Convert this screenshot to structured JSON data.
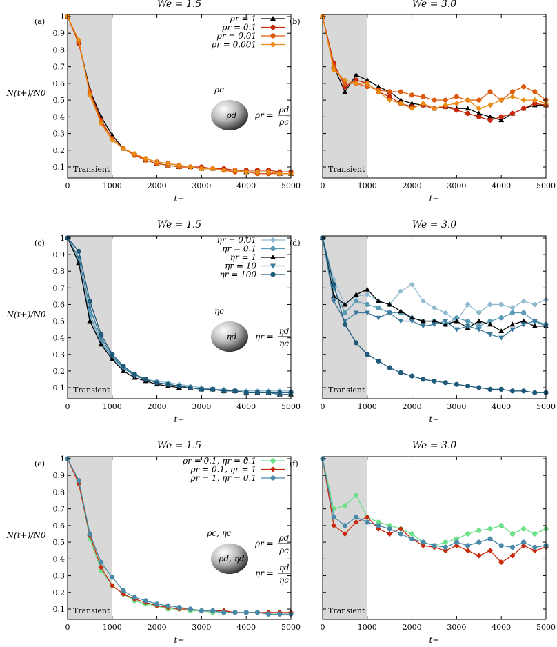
{
  "chart_data": [
    {
      "panel": "(a)",
      "title": "We = 1.5",
      "type": "line",
      "xlabel": "t+",
      "ylabel": "N(t+)/N0",
      "xlim": [
        0,
        5000
      ],
      "ylim": [
        0.04,
        1.02
      ],
      "xticks": [
        0,
        1000,
        2000,
        3000,
        4000,
        5000
      ],
      "yticks": [
        0.1,
        0.2,
        0.3,
        0.4,
        0.5,
        0.6,
        0.7,
        0.8,
        0.9,
        1
      ],
      "shade": {
        "from": 0,
        "to": 1000,
        "label": "Transient"
      },
      "legend_position": "top-right",
      "annotation": {
        "outer": "ρc",
        "inner": "ρd",
        "eqs": [
          {
            "lhs": "ρr =",
            "num": "ρd",
            "den": "ρc"
          }
        ]
      },
      "x": [
        0,
        250,
        500,
        750,
        1000,
        1250,
        1500,
        1750,
        2000,
        2250,
        2500,
        2750,
        3000,
        3250,
        3500,
        3750,
        4000,
        4250,
        4500,
        4750,
        5000
      ],
      "series": [
        {
          "name": "ρr = 1",
          "color": "#000000",
          "marker": "triangle",
          "values": [
            1,
            0.85,
            0.56,
            0.4,
            0.29,
            0.21,
            0.17,
            0.14,
            0.12,
            0.11,
            0.1,
            0.1,
            0.09,
            0.09,
            0.08,
            0.08,
            0.07,
            0.07,
            0.07,
            0.06,
            0.06
          ]
        },
        {
          "name": "ρr = 0.1",
          "color": "#c8280a",
          "marker": "circle",
          "values": [
            1,
            0.84,
            0.55,
            0.38,
            0.27,
            0.21,
            0.17,
            0.15,
            0.13,
            0.12,
            0.11,
            0.1,
            0.1,
            0.09,
            0.09,
            0.08,
            0.08,
            0.08,
            0.08,
            0.07,
            0.07
          ]
        },
        {
          "name": "ρr = 0.01",
          "color": "#dd5a0c",
          "marker": "circle",
          "values": [
            1,
            0.85,
            0.54,
            0.37,
            0.27,
            0.21,
            0.17,
            0.14,
            0.12,
            0.11,
            0.1,
            0.1,
            0.09,
            0.09,
            0.08,
            0.07,
            0.07,
            0.06,
            0.06,
            0.06,
            0.06
          ]
        },
        {
          "name": "ρr = 0.001",
          "color": "#e98c14",
          "marker": "diamond",
          "values": [
            1,
            0.86,
            0.53,
            0.36,
            0.26,
            0.21,
            0.18,
            0.15,
            0.13,
            0.12,
            0.11,
            0.1,
            0.09,
            0.09,
            0.08,
            0.08,
            0.07,
            0.07,
            0.07,
            0.06,
            0.06
          ]
        }
      ]
    },
    {
      "panel": "(b)",
      "title": "We = 3.0",
      "type": "line",
      "xlabel": "t+",
      "xlim": [
        0,
        5000
      ],
      "ylim": [
        0.04,
        1.02
      ],
      "xticks": [
        0,
        1000,
        2000,
        3000,
        4000,
        5000
      ],
      "yticks": [],
      "shade": {
        "from": 0,
        "to": 1000,
        "label": "Transient"
      },
      "x": [
        0,
        250,
        500,
        750,
        1000,
        1250,
        1500,
        1750,
        2000,
        2250,
        2500,
        2750,
        3000,
        3250,
        3500,
        3750,
        4000,
        4250,
        4500,
        4750,
        5000
      ],
      "series": [
        {
          "name": "ρr = 1",
          "color": "#000000",
          "marker": "triangle",
          "values": [
            1,
            0.7,
            0.55,
            0.65,
            0.62,
            0.58,
            0.55,
            0.5,
            0.48,
            0.47,
            0.45,
            0.46,
            0.45,
            0.45,
            0.42,
            0.4,
            0.38,
            0.42,
            0.45,
            0.47,
            0.47
          ]
        },
        {
          "name": "ρr = 0.1",
          "color": "#c8280a",
          "marker": "circle",
          "values": [
            1,
            0.72,
            0.58,
            0.62,
            0.6,
            0.55,
            0.52,
            0.48,
            0.46,
            0.47,
            0.45,
            0.46,
            0.44,
            0.42,
            0.4,
            0.38,
            0.4,
            0.42,
            0.45,
            0.48,
            0.47
          ]
        },
        {
          "name": "ρr = 0.01",
          "color": "#dd5a0c",
          "marker": "circle",
          "values": [
            1,
            0.7,
            0.6,
            0.6,
            0.58,
            0.56,
            0.55,
            0.55,
            0.53,
            0.52,
            0.5,
            0.5,
            0.52,
            0.5,
            0.5,
            0.55,
            0.5,
            0.55,
            0.58,
            0.55,
            0.5
          ]
        },
        {
          "name": "ρr = 0.001",
          "color": "#e98c14",
          "marker": "diamond",
          "values": [
            1,
            0.68,
            0.62,
            0.6,
            0.6,
            0.55,
            0.5,
            0.48,
            0.45,
            0.48,
            0.45,
            0.47,
            0.48,
            0.5,
            0.45,
            0.47,
            0.5,
            0.52,
            0.5,
            0.5,
            0.48
          ]
        }
      ]
    },
    {
      "panel": "(c)",
      "title": "We = 1.5",
      "type": "line",
      "xlabel": "t+",
      "ylabel": "N(t+)/N0",
      "xlim": [
        0,
        5000
      ],
      "ylim": [
        0.04,
        1.02
      ],
      "xticks": [
        0,
        1000,
        2000,
        3000,
        4000,
        5000
      ],
      "yticks": [
        0.1,
        0.2,
        0.3,
        0.4,
        0.5,
        0.6,
        0.7,
        0.8,
        0.9,
        1
      ],
      "shade": {
        "from": 0,
        "to": 1000,
        "label": "Transient"
      },
      "legend_position": "top-right",
      "annotation": {
        "outer": "ηc",
        "inner": "ηd",
        "eqs": [
          {
            "lhs": "ηr =",
            "num": "ηd",
            "den": "ηc"
          }
        ]
      },
      "x": [
        0,
        250,
        500,
        750,
        1000,
        1250,
        1500,
        1750,
        2000,
        2250,
        2500,
        2750,
        3000,
        3250,
        3500,
        3750,
        4000,
        4250,
        4500,
        4750,
        5000
      ],
      "series": [
        {
          "name": "ηr = 0.01",
          "color": "#8fbad0",
          "marker": "diamond",
          "values": [
            1,
            0.86,
            0.52,
            0.37,
            0.28,
            0.21,
            0.18,
            0.15,
            0.14,
            0.13,
            0.12,
            0.11,
            0.1,
            0.09,
            0.09,
            0.08,
            0.08,
            0.08,
            0.08,
            0.08,
            0.08
          ]
        },
        {
          "name": "ηr = 0.1",
          "color": "#5a9bb7",
          "marker": "circle",
          "values": [
            1,
            0.85,
            0.54,
            0.38,
            0.28,
            0.22,
            0.18,
            0.15,
            0.13,
            0.12,
            0.11,
            0.1,
            0.09,
            0.09,
            0.08,
            0.08,
            0.07,
            0.07,
            0.07,
            0.07,
            0.07
          ]
        },
        {
          "name": "ηr = 1",
          "color": "#000000",
          "marker": "triangle",
          "values": [
            1,
            0.85,
            0.5,
            0.36,
            0.27,
            0.2,
            0.16,
            0.14,
            0.12,
            0.11,
            0.1,
            0.1,
            0.09,
            0.09,
            0.08,
            0.08,
            0.07,
            0.07,
            0.07,
            0.06,
            0.06
          ]
        },
        {
          "name": "ηr = 10",
          "color": "#3a7a9c",
          "marker": "invtriangle",
          "values": [
            1,
            0.88,
            0.58,
            0.4,
            0.29,
            0.22,
            0.17,
            0.15,
            0.13,
            0.12,
            0.11,
            0.1,
            0.09,
            0.09,
            0.08,
            0.08,
            0.07,
            0.07,
            0.07,
            0.06,
            0.06
          ]
        },
        {
          "name": "ηr = 100",
          "color": "#1f5a7a",
          "marker": "circle",
          "values": [
            1,
            0.92,
            0.62,
            0.42,
            0.3,
            0.23,
            0.18,
            0.15,
            0.13,
            0.12,
            0.11,
            0.1,
            0.09,
            0.09,
            0.08,
            0.08,
            0.07,
            0.07,
            0.07,
            0.07,
            0.07
          ]
        }
      ]
    },
    {
      "panel": "(d)",
      "title": "We = 3.0",
      "type": "line",
      "xlabel": "t+",
      "xlim": [
        0,
        5000
      ],
      "ylim": [
        0.04,
        1.02
      ],
      "xticks": [
        0,
        1000,
        2000,
        3000,
        4000,
        5000
      ],
      "yticks": [],
      "shade": {
        "from": 0,
        "to": 1000,
        "label": "Transient"
      },
      "x": [
        0,
        250,
        500,
        750,
        1000,
        1250,
        1500,
        1750,
        2000,
        2250,
        2500,
        2750,
        3000,
        3250,
        3500,
        3750,
        4000,
        4250,
        4500,
        4750,
        5000
      ],
      "series": [
        {
          "name": "ηr = 0.01",
          "color": "#8fbad0",
          "marker": "diamond",
          "values": [
            1,
            0.75,
            0.6,
            0.65,
            0.66,
            0.62,
            0.6,
            0.68,
            0.72,
            0.62,
            0.58,
            0.55,
            0.5,
            0.6,
            0.55,
            0.6,
            0.6,
            0.58,
            0.62,
            0.6,
            0.63
          ]
        },
        {
          "name": "ηr = 0.1",
          "color": "#5a9bb7",
          "marker": "circle",
          "values": [
            1,
            0.7,
            0.55,
            0.62,
            0.6,
            0.58,
            0.55,
            0.55,
            0.52,
            0.5,
            0.5,
            0.48,
            0.52,
            0.5,
            0.47,
            0.5,
            0.52,
            0.55,
            0.55,
            0.5,
            0.48
          ]
        },
        {
          "name": "ηr = 1",
          "color": "#000000",
          "marker": "triangle",
          "values": [
            1,
            0.65,
            0.6,
            0.66,
            0.69,
            0.62,
            0.6,
            0.56,
            0.52,
            0.5,
            0.5,
            0.48,
            0.5,
            0.46,
            0.5,
            0.48,
            0.44,
            0.48,
            0.5,
            0.47,
            0.47
          ]
        },
        {
          "name": "ηr = 10",
          "color": "#3a7a9c",
          "marker": "invtriangle",
          "values": [
            1,
            0.62,
            0.5,
            0.55,
            0.55,
            0.52,
            0.55,
            0.5,
            0.5,
            0.47,
            0.48,
            0.5,
            0.45,
            0.47,
            0.45,
            0.42,
            0.4,
            0.45,
            0.48,
            0.5,
            0.47
          ]
        },
        {
          "name": "ηr = 100",
          "color": "#1f5a7a",
          "marker": "circle",
          "values": [
            1,
            0.72,
            0.48,
            0.37,
            0.3,
            0.26,
            0.22,
            0.19,
            0.17,
            0.15,
            0.14,
            0.13,
            0.12,
            0.11,
            0.1,
            0.09,
            0.09,
            0.08,
            0.08,
            0.07,
            0.07
          ]
        }
      ]
    },
    {
      "panel": "(e)",
      "title": "We = 1.5",
      "type": "line",
      "xlabel": "t+",
      "ylabel": "N(t+)/N0",
      "xlim": [
        0,
        5000
      ],
      "ylim": [
        0.04,
        1.02
      ],
      "xticks": [
        0,
        1000,
        2000,
        3000,
        4000,
        5000
      ],
      "yticks": [
        0.1,
        0.2,
        0.3,
        0.4,
        0.5,
        0.6,
        0.7,
        0.8,
        0.9,
        1
      ],
      "shade": {
        "from": 0,
        "to": 1000,
        "label": "Transient"
      },
      "legend_position": "top-right",
      "annotation": {
        "outer": "ρc, ηc",
        "inner": "ρd, ηd",
        "eqs": [
          {
            "lhs": "ρr =",
            "num": "ρd",
            "den": "ρc"
          },
          {
            "lhs": "ηr =",
            "num": "ηd",
            "den": "ηc"
          }
        ]
      },
      "x": [
        0,
        250,
        500,
        750,
        1000,
        1250,
        1500,
        1750,
        2000,
        2250,
        2500,
        2750,
        3000,
        3250,
        3500,
        3750,
        4000,
        4250,
        4500,
        4750,
        5000
      ],
      "series": [
        {
          "name": "ρr = 0.1, ηr = 0.1",
          "color": "#6fe08a",
          "marker": "circle",
          "values": [
            1,
            0.86,
            0.52,
            0.33,
            0.24,
            0.19,
            0.15,
            0.13,
            0.12,
            0.1,
            0.1,
            0.09,
            0.09,
            0.08,
            0.08,
            0.08,
            0.08,
            0.08,
            0.07,
            0.07,
            0.07
          ]
        },
        {
          "name": "ρr = 0.1, ηr = 1",
          "color": "#c8280a",
          "marker": "diamond",
          "values": [
            1,
            0.85,
            0.54,
            0.35,
            0.24,
            0.19,
            0.16,
            0.14,
            0.12,
            0.11,
            0.1,
            0.1,
            0.09,
            0.09,
            0.09,
            0.08,
            0.08,
            0.08,
            0.08,
            0.08,
            0.08
          ]
        },
        {
          "name": "ρr = 1, ηr = 0.1",
          "color": "#4a8aa8",
          "marker": "circle",
          "values": [
            1,
            0.87,
            0.55,
            0.38,
            0.29,
            0.21,
            0.17,
            0.15,
            0.13,
            0.12,
            0.11,
            0.1,
            0.09,
            0.09,
            0.08,
            0.08,
            0.08,
            0.08,
            0.07,
            0.07,
            0.07
          ]
        }
      ]
    },
    {
      "panel": "(f)",
      "title": "We = 3.0",
      "type": "line",
      "xlabel": "t+",
      "xlim": [
        0,
        5000
      ],
      "ylim": [
        0.04,
        1.02
      ],
      "xticks": [
        0,
        1000,
        2000,
        3000,
        4000,
        5000
      ],
      "yticks": [],
      "shade": {
        "from": 0,
        "to": 1000,
        "label": "Transient"
      },
      "x": [
        0,
        250,
        500,
        750,
        1000,
        1250,
        1500,
        1750,
        2000,
        2250,
        2500,
        2750,
        3000,
        3250,
        3500,
        3750,
        4000,
        4250,
        4500,
        4750,
        5000
      ],
      "series": [
        {
          "name": "ρr = 0.1, ηr = 0.1",
          "color": "#6fe08a",
          "marker": "circle",
          "values": [
            1,
            0.7,
            0.72,
            0.78,
            0.65,
            0.62,
            0.6,
            0.58,
            0.55,
            0.5,
            0.48,
            0.5,
            0.52,
            0.55,
            0.57,
            0.58,
            0.6,
            0.55,
            0.58,
            0.55,
            0.58
          ]
        },
        {
          "name": "ρr = 0.1, ηr = 1",
          "color": "#c8280a",
          "marker": "diamond",
          "values": [
            1,
            0.6,
            0.55,
            0.62,
            0.65,
            0.58,
            0.55,
            0.58,
            0.52,
            0.48,
            0.47,
            0.45,
            0.48,
            0.45,
            0.42,
            0.45,
            0.38,
            0.42,
            0.48,
            0.45,
            0.47
          ]
        },
        {
          "name": "ρr = 1, ηr = 0.1",
          "color": "#4a8aa8",
          "marker": "circle",
          "values": [
            1,
            0.65,
            0.6,
            0.65,
            0.62,
            0.6,
            0.58,
            0.55,
            0.52,
            0.5,
            0.48,
            0.47,
            0.5,
            0.48,
            0.5,
            0.52,
            0.48,
            0.47,
            0.5,
            0.47,
            0.48
          ]
        }
      ]
    }
  ]
}
